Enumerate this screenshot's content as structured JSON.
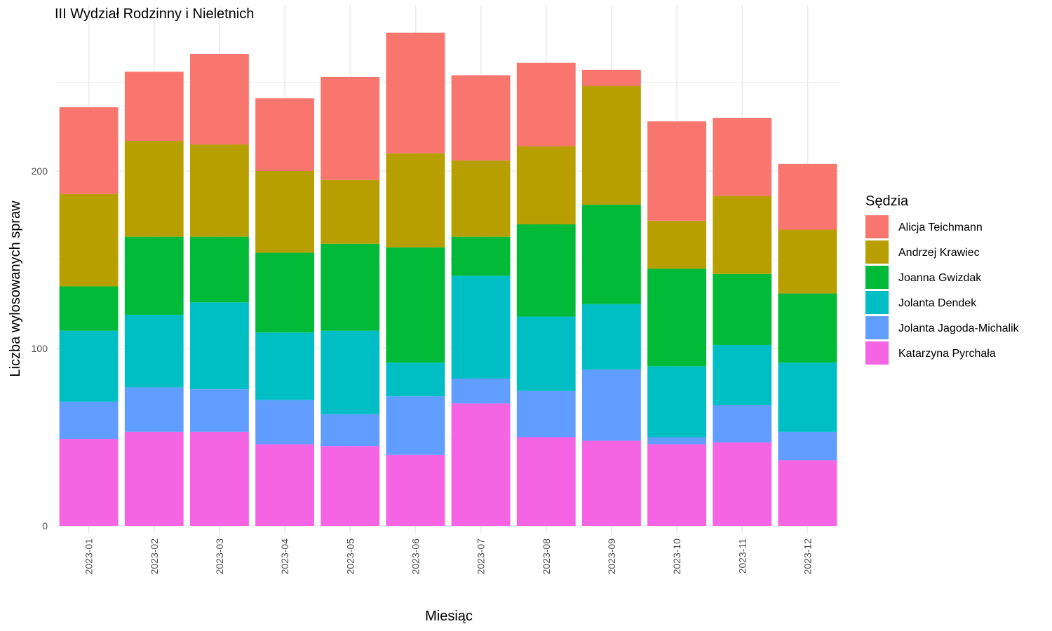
{
  "chart_data": {
    "type": "bar",
    "stacked": true,
    "title": "III Wydział Rodzinny i Nieletnich",
    "xlabel": "Miesiąc",
    "ylabel": "Liczba wylosowanych spraw",
    "ylim": [
      0,
      290
    ],
    "y_ticks": [
      0,
      100,
      200
    ],
    "y_tick_labels": [
      "0",
      "100",
      "200"
    ],
    "grid": true,
    "legend_title": "Sędzia",
    "legend_position": "right",
    "categories": [
      "2023-01",
      "2023-02",
      "2023-03",
      "2023-04",
      "2023-05",
      "2023-06",
      "2023-07",
      "2023-08",
      "2023-09",
      "2023-10",
      "2023-11",
      "2023-12"
    ],
    "series": [
      {
        "name": "Alicja Teichmann",
        "color": "#F8766D",
        "values": [
          49,
          39,
          51,
          41,
          58,
          68,
          48,
          47,
          9,
          56,
          44,
          37
        ]
      },
      {
        "name": "Andrzej Krawiec",
        "color": "#B79F00",
        "values": [
          52,
          54,
          52,
          46,
          36,
          53,
          43,
          44,
          67,
          27,
          44,
          36
        ]
      },
      {
        "name": "Joanna Gwizdak",
        "color": "#00BA38",
        "values": [
          25,
          44,
          37,
          45,
          49,
          65,
          22,
          52,
          56,
          55,
          40,
          39
        ]
      },
      {
        "name": "Jolanta Dendek",
        "color": "#00BFC4",
        "values": [
          40,
          41,
          49,
          38,
          47,
          19,
          58,
          42,
          37,
          40,
          34,
          39
        ]
      },
      {
        "name": "Jolanta Jagoda-Michalik",
        "color": "#619CFF",
        "values": [
          21,
          25,
          24,
          25,
          18,
          33,
          14,
          26,
          40,
          4,
          21,
          16
        ]
      },
      {
        "name": "Katarzyna Pyrchała",
        "color": "#F564E3",
        "values": [
          49,
          53,
          53,
          46,
          45,
          40,
          69,
          50,
          48,
          46,
          47,
          37
        ]
      }
    ]
  }
}
